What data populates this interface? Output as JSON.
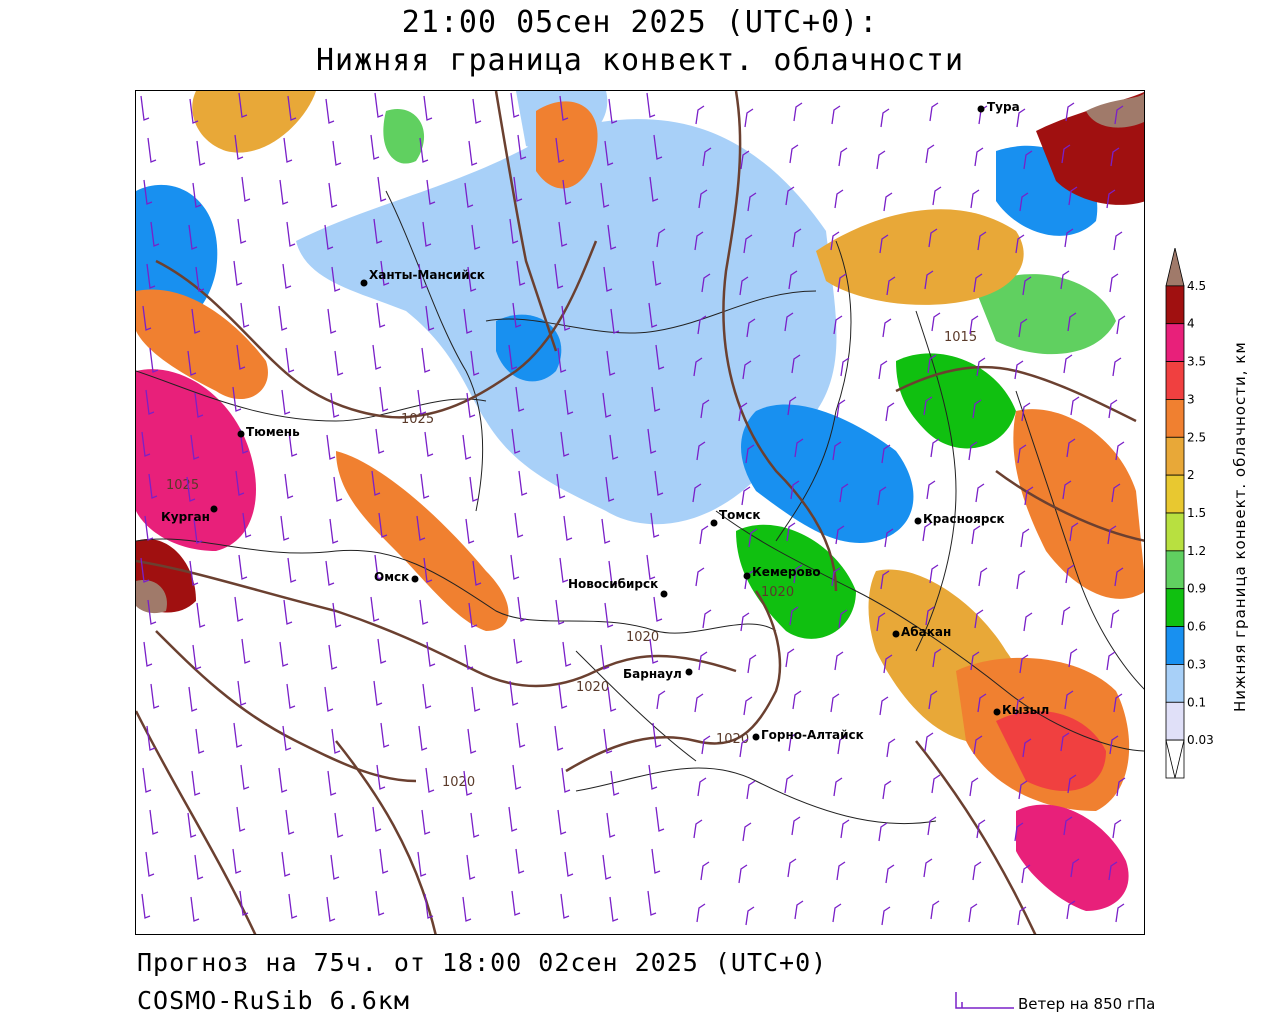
{
  "header": {
    "title_line1": "21:00 05сен 2025 (UTC+0):",
    "title_line2": "Нижняя граница конвект. облачности"
  },
  "footer": {
    "forecast": "Прогноз на 75ч. от 18:00 02сен 2025 (UTC+0)",
    "model": "COSMO-RuSib 6.6км",
    "wind_legend": "Ветер на 850 гПа"
  },
  "colorbar": {
    "title": "Нижняя граница конвект. облачности, км",
    "levels": [
      {
        "label": "4.5",
        "color": "#a07a6a"
      },
      {
        "label": "4",
        "color": "#a01010"
      },
      {
        "label": "3.5",
        "color": "#e8207a"
      },
      {
        "label": "3",
        "color": "#f04040"
      },
      {
        "label": "2.5",
        "color": "#f08030"
      },
      {
        "label": "2",
        "color": "#e8a838"
      },
      {
        "label": "1.5",
        "color": "#e8c830"
      },
      {
        "label": "1.2",
        "color": "#b8e040"
      },
      {
        "label": "0.9",
        "color": "#60d060"
      },
      {
        "label": "0.6",
        "color": "#10c010"
      },
      {
        "label": "0.3",
        "color": "#1890f0"
      },
      {
        "label": "0.1",
        "color": "#a8d0f8"
      },
      {
        "label": "0.03",
        "color": "#e0e0f8"
      }
    ]
  },
  "cities": [
    {
      "name": "Тура"
    },
    {
      "name": "Ханты-Мансийск"
    },
    {
      "name": "Тюмень"
    },
    {
      "name": "Курган"
    },
    {
      "name": "Омск"
    },
    {
      "name": "Новосибирск"
    },
    {
      "name": "Томск"
    },
    {
      "name": "Кемерово"
    },
    {
      "name": "Красноярск"
    },
    {
      "name": "Абакан"
    },
    {
      "name": "Барнаул"
    },
    {
      "name": "Горно-Алтайск"
    },
    {
      "name": "Кызыл"
    }
  ],
  "isobars": [
    "1025",
    "1025",
    "1020",
    "1020",
    "1020",
    "1020",
    "1020",
    "1015"
  ],
  "colors": {
    "isobar": "#6b4030",
    "wind": "#7a20c8",
    "border": "#000000"
  }
}
